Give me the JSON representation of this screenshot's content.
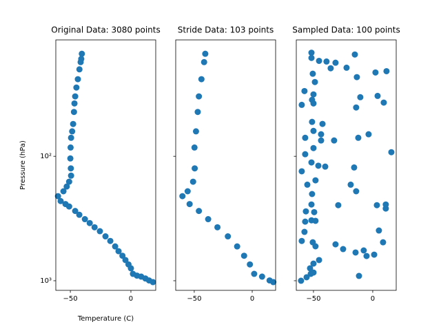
{
  "chart_data": [
    {
      "type": "scatter",
      "title": "Original Data: 3080 points",
      "x_label": "Temperature (C)",
      "y_label": "Pressure (hPa)",
      "color": "#1f77b4",
      "y_log": true,
      "show_ytick_labels": true,
      "xlim": [
        -62,
        20.5
      ],
      "ylim": [
        1195,
        11.6
      ],
      "xticks": [
        {
          "value": -50,
          "label": "−50"
        },
        0
      ],
      "yticks": [
        {
          "value": 100,
          "label": "10²"
        },
        {
          "value": 1000,
          "label": "10³"
        }
      ],
      "x": [
        -40.5,
        -41,
        -41.5,
        -42.5,
        -43.8,
        -45,
        -46,
        -46.6,
        -47,
        -47.7,
        -48.5,
        -49.4,
        -49.8,
        -50,
        -49.6,
        -49.4,
        -51,
        -53,
        -55.7,
        -60.2,
        -58,
        -54,
        -51,
        -46,
        -42.6,
        -38,
        -34,
        -30,
        -25.6,
        -21,
        -17,
        -13,
        -10.2,
        -7,
        -4.5,
        -2,
        0,
        1.7,
        5,
        8.5,
        12,
        15,
        18.2
      ],
      "values": [
        15,
        16.5,
        17.5,
        20,
        24,
        28,
        33,
        37.6,
        44,
        55,
        63,
        71,
        85,
        104,
        125,
        143,
        160,
        175,
        191,
        209,
        229,
        242,
        253,
        275,
        295,
        320,
        344,
        372,
        400,
        440,
        479,
        530,
        579,
        630,
        682,
        740,
        795,
        881,
        910,
        927,
        960,
        995,
        1026
      ]
    },
    {
      "type": "scatter",
      "title": "Stride Data: 103 points",
      "color": "#1f77b4",
      "y_log": true,
      "show_ytick_labels": false,
      "xlim": [
        -66,
        20.2
      ],
      "ylim": [
        1195,
        11.6
      ],
      "xticks": [
        {
          "value": -50,
          "label": "−50"
        },
        0
      ],
      "yticks": [
        100,
        1000
      ],
      "x": [
        -40.5,
        -41.5,
        -43.8,
        -46,
        -47,
        -48.5,
        -49.8,
        -49.6,
        -51,
        -55.7,
        -60.2,
        -54,
        -46,
        -38,
        -30,
        -21,
        -13,
        -7,
        -2,
        1.7,
        8.5,
        15,
        18.2
      ],
      "values": [
        15,
        17.5,
        24,
        33,
        44,
        63,
        85,
        125,
        160,
        191,
        209,
        242,
        275,
        320,
        372,
        440,
        530,
        630,
        740,
        881,
        927,
        995,
        1026
      ]
    },
    {
      "type": "scatter",
      "title": "Sampled Data: 100 points",
      "color": "#1f77b4",
      "y_log": true,
      "show_ytick_labels": false,
      "xlim": [
        -64.5,
        19.8
      ],
      "ylim": [
        1195,
        11.6
      ],
      "xticks": [
        {
          "value": -50,
          "label": "−50"
        },
        0
      ],
      "yticks": [
        100,
        1000
      ],
      "x": [
        -51.7,
        -51.7,
        -45.3,
        -39,
        -31.4,
        -15.1,
        -35.5,
        -22.1,
        -50.6,
        2.3,
        11.6,
        -48.8,
        -13.4,
        -57.6,
        -50,
        -51.2,
        -10.5,
        4.1,
        -59.9,
        -50,
        9.3,
        -14,
        -51.2,
        -50,
        -42.4,
        -57,
        -32.6,
        -12.2,
        -3.5,
        -43.6,
        -50,
        -43.6,
        15.7,
        -57,
        -51.7,
        -45.9,
        -40.1,
        -15.7,
        -59.9,
        -48.3,
        -55.2,
        -51.2,
        -14,
        -18.6,
        3.5,
        -51.7,
        -29.1,
        -49.4,
        11,
        -56.4,
        11,
        -57,
        -51.7,
        -48.3,
        -57.6,
        5.2,
        -50.6,
        -48.3,
        -59.9,
        -31.4,
        -25,
        -14.5,
        -7.6,
        -5.2,
        1.2,
        8.7,
        -50,
        -45.3,
        -52.3,
        -50,
        -55.8,
        -60.5,
        -11.6,
        -52.9
      ],
      "values": [
        14.7,
        16.2,
        17.1,
        17.3,
        17.7,
        15.2,
        19.6,
        19.4,
        21.7,
        21.2,
        20.7,
        25.3,
        23.1,
        29.9,
        31.8,
        35.2,
        33.5,
        32.7,
        38.6,
        37.6,
        37,
        40.5,
        52.9,
        62.5,
        54.9,
        71,
        74.6,
        71,
        66.5,
        66.5,
        85.9,
        74.6,
        92.7,
        96.2,
        112,
        119,
        121,
        123,
        132,
        156,
        169,
        201,
        191,
        169,
        247,
        244,
        247,
        281,
        263,
        277,
        244,
        335,
        327,
        330,
        405,
        395,
        491,
        529,
        479,
        510,
        557,
        593,
        571,
        633,
        617,
        491,
        728,
        682,
        881,
        859,
        938,
        1000,
        915,
        795
      ]
    }
  ]
}
